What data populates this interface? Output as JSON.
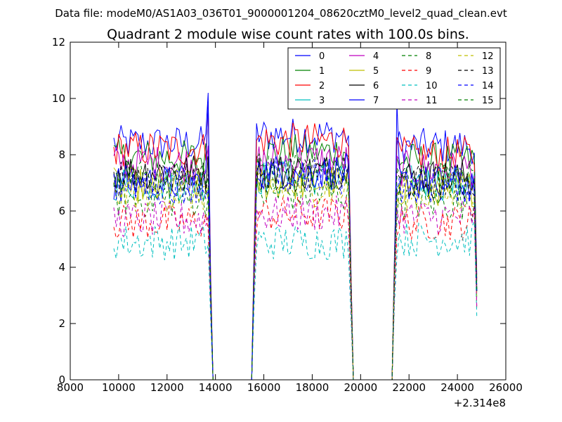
{
  "chart_data": {
    "type": "line",
    "suptitle": "Data file: modeM0/AS1A03_036T01_9000001204_08620cztM0_level2_quad_clean.evt",
    "title": "Quadrant 2 module wise count rates with 100.0s bins.",
    "xlabel": "",
    "ylabel": "",
    "xlim": [
      8000,
      26000
    ],
    "ylim": [
      0,
      12
    ],
    "x_offset_label": "+2.314e8",
    "x_ticks": [
      8000,
      10000,
      12000,
      14000,
      16000,
      18000,
      20000,
      22000,
      24000,
      26000
    ],
    "y_ticks": [
      0,
      2,
      4,
      6,
      8,
      10,
      12
    ],
    "legend_position": "top-right",
    "bin_size_s": 100,
    "segments": [
      [
        9800,
        13800
      ],
      [
        15600,
        19600
      ],
      [
        21400,
        24800
      ]
    ],
    "series": [
      {
        "name": "0",
        "color": "#0000ff",
        "dash": false,
        "levels": [
          8.4,
          8.7,
          8.3
        ],
        "peak": 10.2
      },
      {
        "name": "1",
        "color": "#008000",
        "dash": false,
        "levels": [
          7.9,
          8.1,
          7.8
        ]
      },
      {
        "name": "2",
        "color": "#ff0000",
        "dash": false,
        "levels": [
          8.2,
          8.5,
          8.0
        ],
        "peak": 9.7
      },
      {
        "name": "3",
        "color": "#00bfbf",
        "dash": false,
        "levels": [
          7.0,
          7.2,
          7.0
        ]
      },
      {
        "name": "4",
        "color": "#bf00bf",
        "dash": false,
        "levels": [
          7.7,
          7.8,
          7.5
        ]
      },
      {
        "name": "5",
        "color": "#bfbf00",
        "dash": false,
        "levels": [
          6.9,
          7.0,
          6.8
        ]
      },
      {
        "name": "6",
        "color": "#000000",
        "dash": false,
        "levels": [
          7.4,
          7.4,
          7.2
        ]
      },
      {
        "name": "7",
        "color": "#0000ff",
        "dash": false,
        "levels": [
          7.0,
          7.4,
          7.0
        ],
        "peak": 9.9
      },
      {
        "name": "8",
        "color": "#008000",
        "dash": true,
        "levels": [
          6.4,
          6.6,
          6.3
        ]
      },
      {
        "name": "9",
        "color": "#ff0000",
        "dash": true,
        "levels": [
          5.6,
          5.9,
          5.6
        ]
      },
      {
        "name": "10",
        "color": "#00bfbf",
        "dash": true,
        "levels": [
          4.9,
          4.9,
          5.0
        ]
      },
      {
        "name": "11",
        "color": "#bf00bf",
        "dash": true,
        "levels": [
          5.7,
          5.9,
          5.8
        ]
      },
      {
        "name": "12",
        "color": "#bfbf00",
        "dash": true,
        "levels": [
          6.6,
          6.8,
          6.6
        ]
      },
      {
        "name": "13",
        "color": "#000000",
        "dash": true,
        "levels": [
          7.2,
          7.3,
          7.0
        ]
      },
      {
        "name": "14",
        "color": "#0000ff",
        "dash": true,
        "levels": [
          6.9,
          7.2,
          6.9
        ]
      },
      {
        "name": "15",
        "color": "#008000",
        "dash": true,
        "levels": [
          7.3,
          7.4,
          7.1
        ]
      }
    ]
  }
}
